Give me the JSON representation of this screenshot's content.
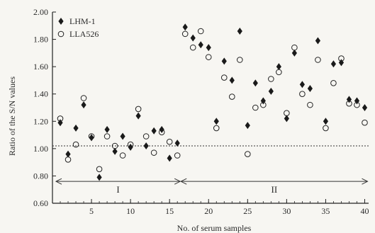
{
  "chart_data": {
    "type": "scatter",
    "title": "",
    "xlabel": "No. of serum samples",
    "ylabel": "Ratio of the S/N values",
    "xlim": [
      0,
      40.5
    ],
    "ylim": [
      0.6,
      2.0
    ],
    "x_ticks": [
      "5",
      "10",
      "15",
      "20",
      "25",
      "30",
      "35",
      "40"
    ],
    "y_ticks": [
      "0.60",
      "0.80",
      "1.00",
      "1.20",
      "1.40",
      "1.60",
      "1.80",
      "2.00"
    ],
    "grid": false,
    "legend": "top-left",
    "reference_line": {
      "y": 1.02,
      "style": "dotted"
    },
    "groups": [
      {
        "label": "I",
        "x_from": 1,
        "x_to": 16
      },
      {
        "label": "II",
        "x_from": 17,
        "x_to": 40
      }
    ],
    "series": [
      {
        "name": "LHM-1",
        "marker": "filled-diamond",
        "x": [
          1,
          2,
          3,
          4,
          5,
          6,
          7,
          8,
          9,
          10,
          11,
          12,
          13,
          14,
          15,
          16,
          17,
          18,
          19,
          20,
          21,
          22,
          23,
          24,
          25,
          26,
          27,
          28,
          29,
          30,
          31,
          32,
          33,
          34,
          35,
          36,
          37,
          38,
          39,
          40
        ],
        "y": [
          1.19,
          0.96,
          1.15,
          1.32,
          1.08,
          0.79,
          1.14,
          0.98,
          1.09,
          1.01,
          1.24,
          1.02,
          1.13,
          1.14,
          0.93,
          1.04,
          1.89,
          1.81,
          1.76,
          1.74,
          1.2,
          1.64,
          1.5,
          1.86,
          1.17,
          1.48,
          1.35,
          1.42,
          1.6,
          1.22,
          1.7,
          1.47,
          1.44,
          1.79,
          1.2,
          1.62,
          1.63,
          1.36,
          1.35,
          1.3
        ]
      },
      {
        "name": "LLA526",
        "marker": "open-circle",
        "x": [
          1,
          2,
          3,
          4,
          5,
          6,
          7,
          8,
          9,
          10,
          11,
          12,
          13,
          14,
          15,
          16,
          17,
          18,
          19,
          20,
          21,
          22,
          23,
          24,
          25,
          26,
          27,
          28,
          29,
          30,
          31,
          32,
          33,
          34,
          35,
          36,
          37,
          38,
          39,
          40
        ],
        "y": [
          1.22,
          0.92,
          1.03,
          1.37,
          1.09,
          0.85,
          1.09,
          1.02,
          0.95,
          1.03,
          1.29,
          1.09,
          0.97,
          1.12,
          1.05,
          0.95,
          1.84,
          1.74,
          1.86,
          1.67,
          1.15,
          1.52,
          1.38,
          1.65,
          0.96,
          1.3,
          1.32,
          1.51,
          1.56,
          1.26,
          1.74,
          1.4,
          1.32,
          1.65,
          1.15,
          1.48,
          1.66,
          1.33,
          1.32,
          1.19
        ]
      }
    ]
  }
}
